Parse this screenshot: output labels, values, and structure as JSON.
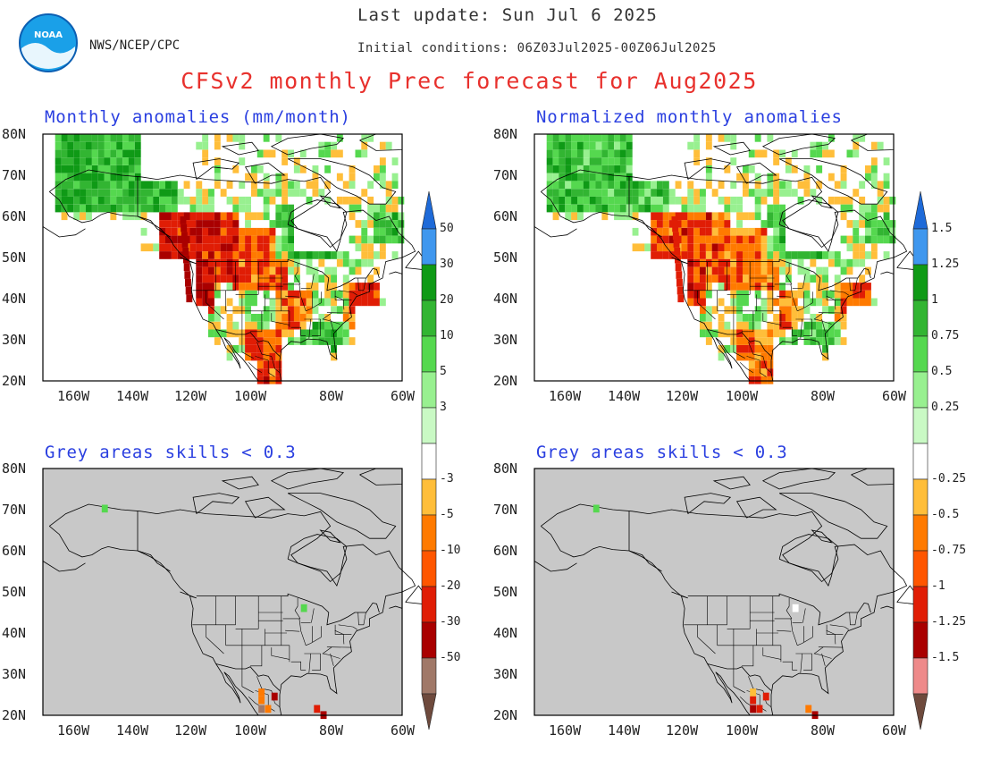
{
  "header": {
    "last_update": "Last update: Sun Jul 6 2025",
    "initial_conditions": "Initial conditions: 06Z03Jul2025-00Z06Jul2025",
    "agency": "NWS/NCEP/CPC",
    "logo_text": "NOAA",
    "main_title": "CFSv2 monthly Prec forecast for Aug2025"
  },
  "panels": {
    "top_left": "Monthly anomalies (mm/month)",
    "top_right": "Normalized monthly anomalies",
    "bottom_left": "Grey areas skills < 0.3",
    "bottom_right": "Grey areas skills < 0.3"
  },
  "axes": {
    "lat_ticks": [
      "80N",
      "70N",
      "60N",
      "50N",
      "40N",
      "30N",
      "20N"
    ],
    "lon_ticks": [
      "160W",
      "140W",
      "120W",
      "100W",
      "80W",
      "60W"
    ]
  },
  "colorbars": {
    "left": {
      "labels": [
        "50",
        "30",
        "20",
        "10",
        "5",
        "3",
        "-3",
        "-5",
        "-10",
        "-20",
        "-30",
        "-50"
      ]
    },
    "right": {
      "labels": [
        "1.5",
        "1.25",
        "1",
        "0.75",
        "0.5",
        "0.25",
        "-0.25",
        "-0.5",
        "-0.75",
        "-1",
        "-1.25",
        "-1.5"
      ]
    },
    "colors_wet": [
      "#1e6ad8",
      "#3f97ee",
      "#0f9a16",
      "#32b532",
      "#55d84f",
      "#98f090",
      "#c9f9c4"
    ],
    "colors_dry": [
      "#ffbe3a",
      "#ff7a00",
      "#ff5600",
      "#e01d05",
      "#a90000",
      "#a07868",
      "#6e4a3d"
    ],
    "colors_dry_right_last": [
      "#ee8a8a",
      "#6e4a3d"
    ]
  },
  "colors": {
    "grey_mask": "#c8c8c8",
    "title_red": "#e8312d",
    "label_blue": "#2a3fe0"
  }
}
